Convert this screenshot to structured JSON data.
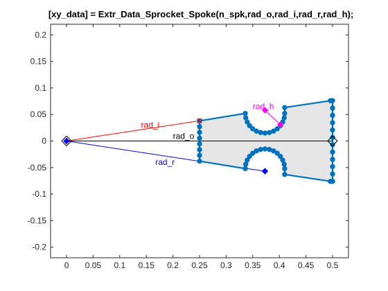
{
  "chart_data": {
    "type": "scatter",
    "title": "[xy_data] = Extr_Data_Sprocket_Spoke(n_spk,rad_o,rad_i,rad_r,rad_h);",
    "xlabel": "",
    "ylabel": "",
    "xlim": [
      -0.03,
      0.53
    ],
    "ylim": [
      -0.22,
      0.22
    ],
    "x_ticks": [
      0,
      0.05,
      0.1,
      0.15,
      0.2,
      0.25,
      0.3,
      0.35,
      0.4,
      0.45,
      0.5
    ],
    "x_tick_labels": [
      "0",
      "0.05",
      "0.1",
      "0.15",
      "0.2",
      "0.25",
      "0.3",
      "0.35",
      "0.4",
      "0.45",
      "0.5"
    ],
    "y_ticks": [
      -0.2,
      -0.15,
      -0.1,
      -0.05,
      0,
      0.05,
      0.1,
      0.15,
      0.2
    ],
    "y_tick_labels": [
      "-0.2",
      "-0.15",
      "-0.1",
      "-0.05",
      "0",
      "0.05",
      "0.1",
      "0.15",
      "0.2"
    ],
    "grid": false,
    "box": true,
    "colors": {
      "profile": "#0072BD",
      "fill": "#e6e6e6",
      "rad_o": "#000000",
      "rad_i": "#ff0000",
      "rad_r": "#0000ff",
      "rad_h": "#ff00ff"
    },
    "spoke_profile": {
      "name": "",
      "left_edge_x": 0.25,
      "left_edge_y_range": [
        -0.038,
        0.038
      ],
      "right_edge_x": 0.5,
      "right_edge_y_range": [
        -0.076,
        0.076
      ],
      "top_points": [
        [
          0.25,
          0.038
        ],
        [
          0.336,
          0.052
        ]
      ],
      "top_notch": {
        "center": [
          0.373,
          0.052
        ],
        "radius": 0.037
      },
      "top_right_points": [
        [
          0.41,
          0.063
        ],
        [
          0.496,
          0.076
        ]
      ],
      "bottom_points": [
        [
          0.25,
          -0.038
        ],
        [
          0.336,
          -0.052
        ]
      ],
      "bottom_notch": {
        "center": [
          0.373,
          -0.052
        ],
        "radius": 0.037
      },
      "bottom_right_points": [
        [
          0.41,
          -0.063
        ],
        [
          0.496,
          -0.076
        ]
      ]
    },
    "annotations": [
      {
        "label": "rad_o",
        "from": [
          0,
          0
        ],
        "to": [
          0.5,
          0
        ],
        "label_at": [
          0.2,
          0.004
        ],
        "color": "rad_o"
      },
      {
        "label": "rad_i",
        "from": [
          0,
          0
        ],
        "to": [
          0.25,
          0.038
        ],
        "label_at": [
          0.14,
          0.025
        ],
        "color": "rad_i"
      },
      {
        "label": "rad_r",
        "from": [
          0,
          0
        ],
        "to": [
          0.373,
          -0.057
        ],
        "label_at": [
          0.167,
          -0.045
        ],
        "color": "rad_r"
      },
      {
        "label": "rad_h",
        "from": [
          0.373,
          0.058
        ],
        "to": [
          0.402,
          0.031
        ],
        "label_at": [
          0.35,
          0.06
        ],
        "color": "rad_h"
      }
    ],
    "markers": [
      {
        "name": "origin-diamond",
        "point": [
          0,
          0
        ],
        "shape": "diamond-open"
      },
      {
        "name": "origin-dot",
        "point": [
          0,
          0
        ],
        "shape": "diamond-filled",
        "color": "rad_r"
      },
      {
        "name": "outer-diamond",
        "point": [
          0.5,
          0
        ],
        "shape": "diamond-open"
      },
      {
        "name": "inner-x",
        "point": [
          0.25,
          0.038
        ],
        "shape": "x",
        "color": "rad_i"
      },
      {
        "name": "root-diamond",
        "point": [
          0.373,
          -0.057
        ],
        "shape": "diamond-filled",
        "color": "rad_r"
      },
      {
        "name": "hole-top-diamond",
        "point": [
          0.373,
          0.058
        ],
        "shape": "diamond-filled",
        "color": "rad_h"
      },
      {
        "name": "hole-bottom-diamond",
        "point": [
          0.402,
          0.031
        ],
        "shape": "diamond-filled",
        "color": "rad_h"
      }
    ]
  }
}
